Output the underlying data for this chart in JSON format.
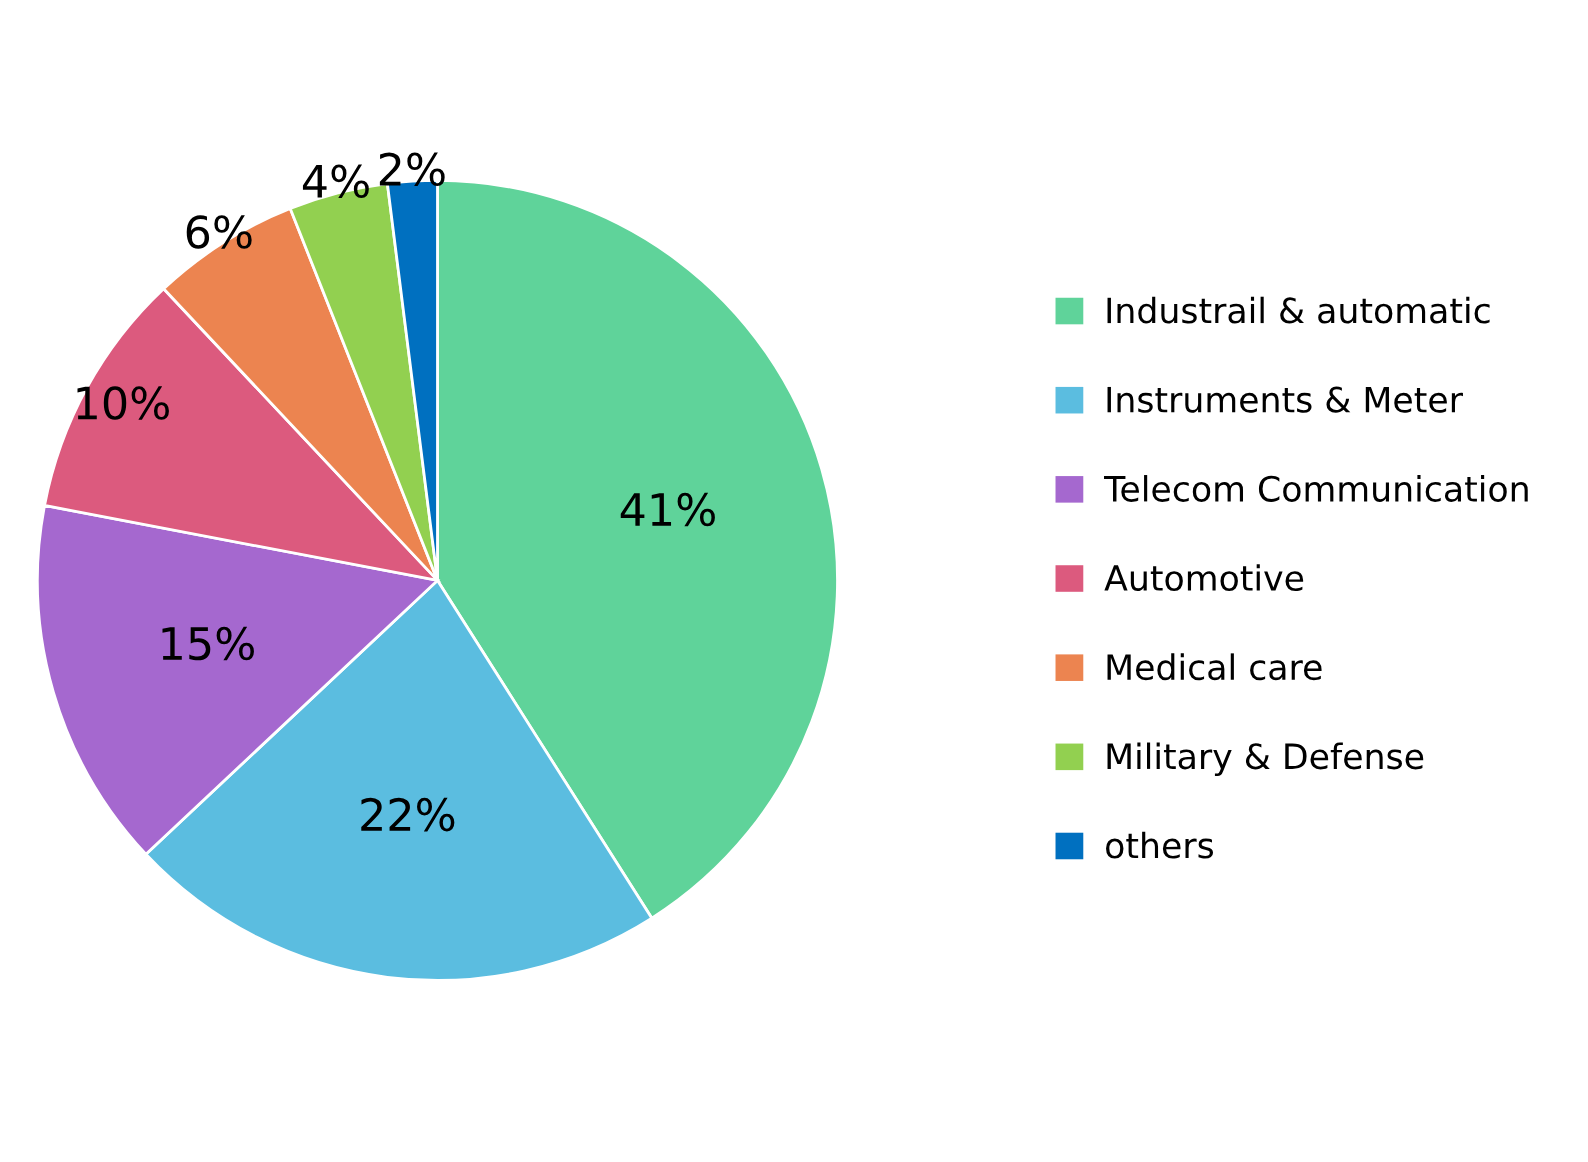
{
  "chart_data": {
    "type": "pie",
    "categories": [
      "Industrail & automatic",
      "Instruments & Meter",
      "Telecom Communication",
      "Automotive",
      "Medical care",
      "Military & Defense",
      "others"
    ],
    "values": [
      41,
      22,
      15,
      10,
      6,
      4,
      2
    ],
    "value_labels": [
      "41%",
      "22%",
      "15%",
      "10%",
      "6%",
      "4%",
      "2%"
    ],
    "colors": [
      "#5fd39a",
      "#5bbde0",
      "#a568cf",
      "#dc5a7e",
      "#ec8450",
      "#92d050",
      "#0070c0"
    ],
    "legend": "right"
  }
}
